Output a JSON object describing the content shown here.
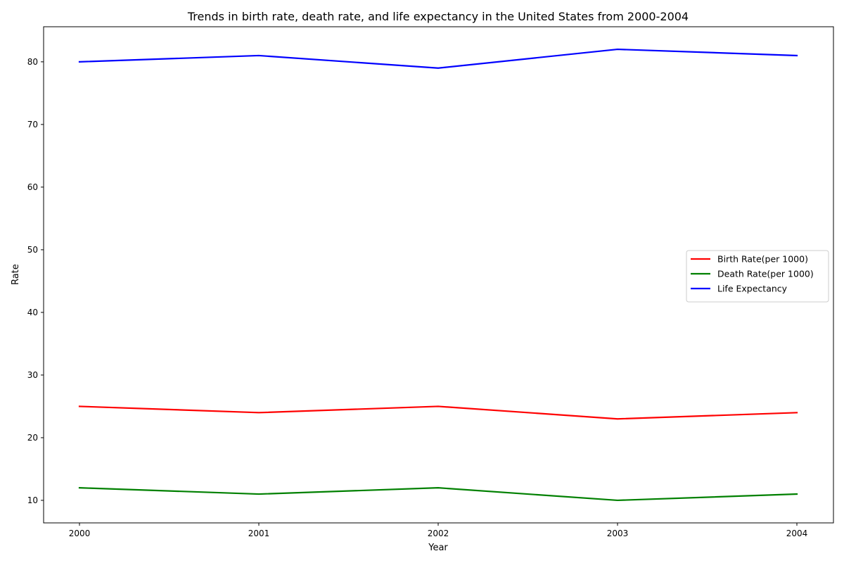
{
  "chart_data": {
    "type": "line",
    "title": "Trends in birth rate, death rate, and life expectancy in the United States from 2000-2004",
    "xlabel": "Year",
    "ylabel": "Rate",
    "x": [
      "2000",
      "2001",
      "2002",
      "2003",
      "2004"
    ],
    "ylim": [
      6.4,
      85.6
    ],
    "yticks": [
      10,
      20,
      30,
      40,
      50,
      60,
      70,
      80
    ],
    "grid": false,
    "legend_position": "center-right",
    "series": [
      {
        "name": "Birth Rate(per 1000)",
        "color": "#ff0000",
        "values": [
          25,
          24,
          25,
          23,
          24
        ]
      },
      {
        "name": "Death Rate(per 1000)",
        "color": "#008000",
        "values": [
          12,
          11,
          12,
          10,
          11
        ]
      },
      {
        "name": "Life Expectancy",
        "color": "#0000ff",
        "values": [
          80,
          81,
          79,
          82,
          81
        ]
      }
    ]
  }
}
